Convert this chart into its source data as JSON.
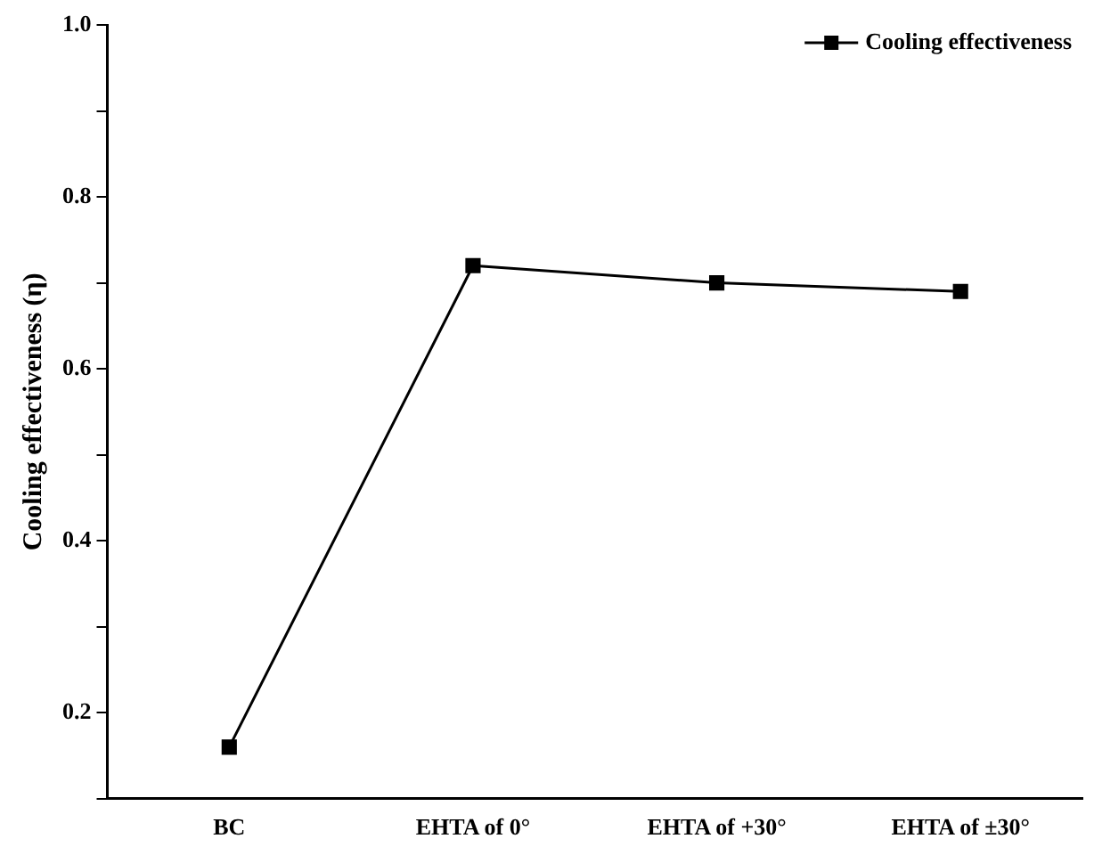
{
  "chart_data": {
    "type": "line",
    "ylabel": "Cooling effectiveness (η)",
    "categories": [
      "BC",
      "EHTA of 0°",
      "EHTA of +30°",
      "EHTA of ±30°"
    ],
    "series": [
      {
        "name": "Cooling effectiveness",
        "color": "#000000",
        "values": [
          0.16,
          0.72,
          0.7,
          0.69
        ]
      }
    ],
    "ylim": [
      0.1,
      1.0
    ],
    "yticks": [
      {
        "value": 0.1,
        "label": null
      },
      {
        "value": 0.2,
        "label": "0.2"
      },
      {
        "value": 0.3,
        "label": null
      },
      {
        "value": 0.4,
        "label": "0.4"
      },
      {
        "value": 0.5,
        "label": null
      },
      {
        "value": 0.6,
        "label": "0.6"
      },
      {
        "value": 0.7,
        "label": null
      },
      {
        "value": 0.8,
        "label": "0.8"
      },
      {
        "value": 0.9,
        "label": null
      },
      {
        "value": 1.0,
        "label": "1.0"
      }
    ],
    "legend": "top right",
    "marker": "square",
    "line_style": "solid"
  }
}
